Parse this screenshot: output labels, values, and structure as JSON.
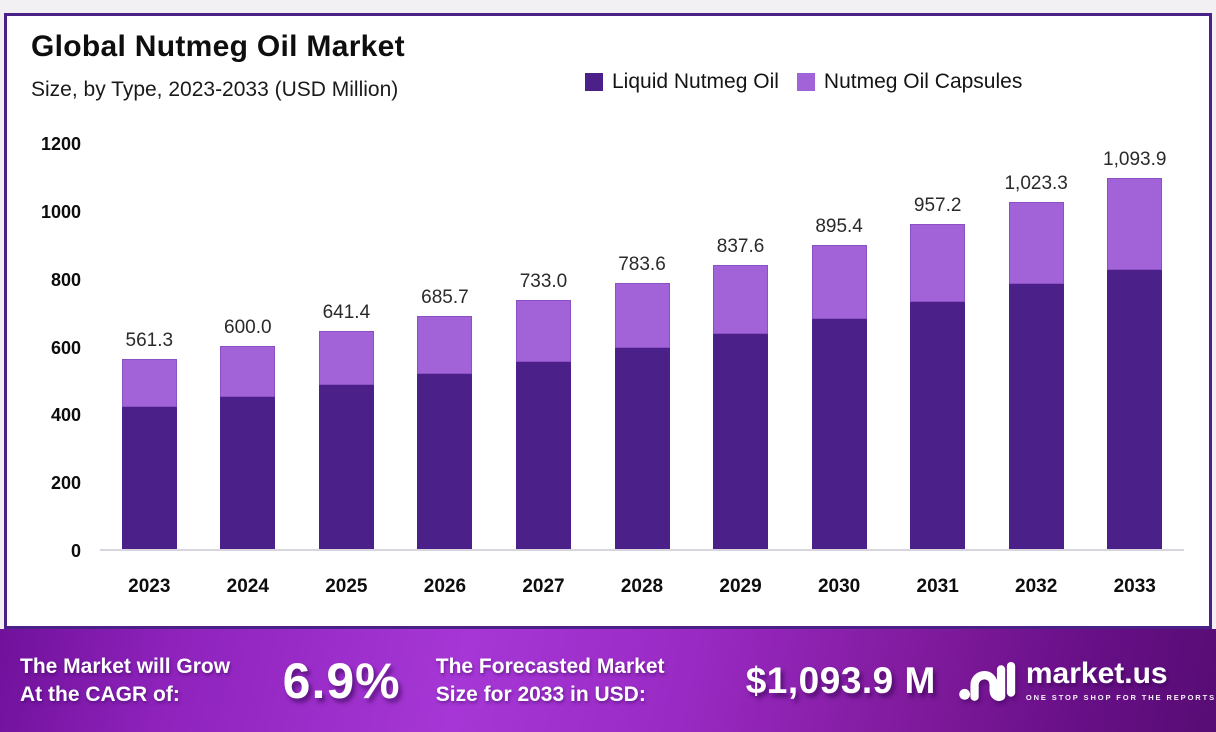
{
  "page": {
    "background": "#f2f0f3"
  },
  "card": {
    "background": "#ffffff",
    "border_color": "#4a2187"
  },
  "chart_data": {
    "type": "bar",
    "stacked": true,
    "title": "Global Nutmeg Oil Market",
    "subtitle": "Size, by Type, 2023-2033 (USD Million)",
    "categories": [
      "2023",
      "2024",
      "2025",
      "2026",
      "2027",
      "2028",
      "2029",
      "2030",
      "2031",
      "2032",
      "2033"
    ],
    "series": [
      {
        "name": "Liquid Nutmeg Oil",
        "color": "#4b2189",
        "values": [
          420.0,
          448.0,
          483.0,
          516.0,
          552.0,
          592.0,
          634.0,
          679.0,
          727.0,
          780.0,
          823.0
        ]
      },
      {
        "name": "Nutmeg Oil Capsules",
        "color": "#a263d9",
        "values": [
          141.3,
          152.0,
          158.4,
          169.7,
          181.0,
          191.6,
          203.6,
          216.4,
          230.2,
          243.3,
          270.9
        ]
      }
    ],
    "totals": [
      561.3,
      600.0,
      641.4,
      685.7,
      733.0,
      783.6,
      837.6,
      895.4,
      957.2,
      1023.3,
      1093.9
    ],
    "total_labels": [
      "561.3",
      "600.0",
      "641.4",
      "685.7",
      "733.0",
      "783.6",
      "837.6",
      "895.4",
      "957.2",
      "1,023.3",
      "1,093.9"
    ],
    "xlabel": "",
    "ylabel": "",
    "ylim": [
      0,
      1200
    ],
    "yticks": [
      1200,
      1000,
      800,
      600,
      400,
      200,
      0
    ],
    "grid": false,
    "legend_position": "top-right"
  },
  "banner": {
    "left_line1": "The Market will Grow",
    "left_line2": "At the CAGR of:",
    "cagr": "6.9%",
    "mid_line1": "The Forecasted Market",
    "mid_line2": "Size for 2033 in USD:",
    "forecast_value": "$1,093.9 M",
    "brand": "market.us",
    "tagline": "ONE STOP SHOP FOR THE REPORTS",
    "gradient": [
      "#70119b",
      "#a637d6",
      "#570c74"
    ]
  }
}
